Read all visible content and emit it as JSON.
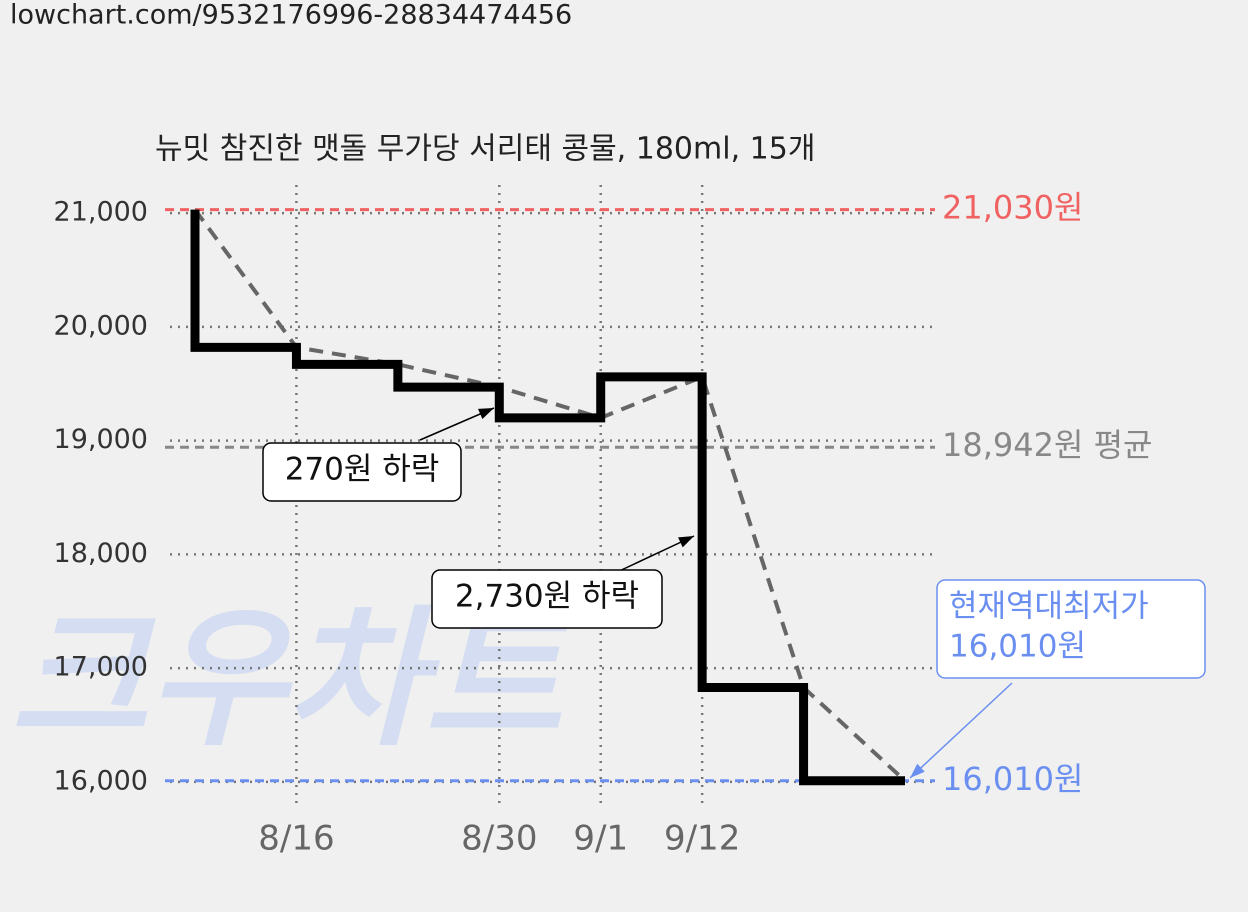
{
  "header": {
    "url": "lowchart.com/9532176996-28834474456"
  },
  "chart_data": {
    "type": "step",
    "title": "뉴밋 참진한 맷돌 무가당 서리태 콩물, 180ml, 15개",
    "watermark": "크우차트",
    "categories": [
      null,
      "8/16",
      null,
      "8/30",
      "9/1",
      "9/12",
      null,
      null
    ],
    "values": [
      21030,
      19820,
      19670,
      19470,
      19200,
      19560,
      16830,
      16010
    ],
    "color": "#000000",
    "trend_color": "#666666",
    "ylim": [
      15850,
      21150
    ],
    "yticks": [
      {
        "value": 16000,
        "label": "16,000"
      },
      {
        "value": 17000,
        "label": "17,000"
      },
      {
        "value": 18000,
        "label": "18,000"
      },
      {
        "value": 19000,
        "label": "19,000"
      },
      {
        "value": 20000,
        "label": "20,000"
      },
      {
        "value": 21000,
        "label": "21,000"
      }
    ],
    "grid": true,
    "ref_lines": [
      {
        "value": 21030,
        "label": "21,030원",
        "color": "#f06262"
      },
      {
        "value": 18942,
        "label": "18,942원 평균",
        "color": "#888888"
      },
      {
        "value": 16010,
        "label": "16,010원",
        "color": "#6a8ff0"
      }
    ],
    "annotations": [
      {
        "lines": [
          "270원 하락"
        ],
        "value": 270
      },
      {
        "lines": [
          "2,730원 하락"
        ],
        "value": 2730
      },
      {
        "lines": [
          "현재역대최저가",
          "16,010원"
        ],
        "value": 16010
      }
    ]
  }
}
